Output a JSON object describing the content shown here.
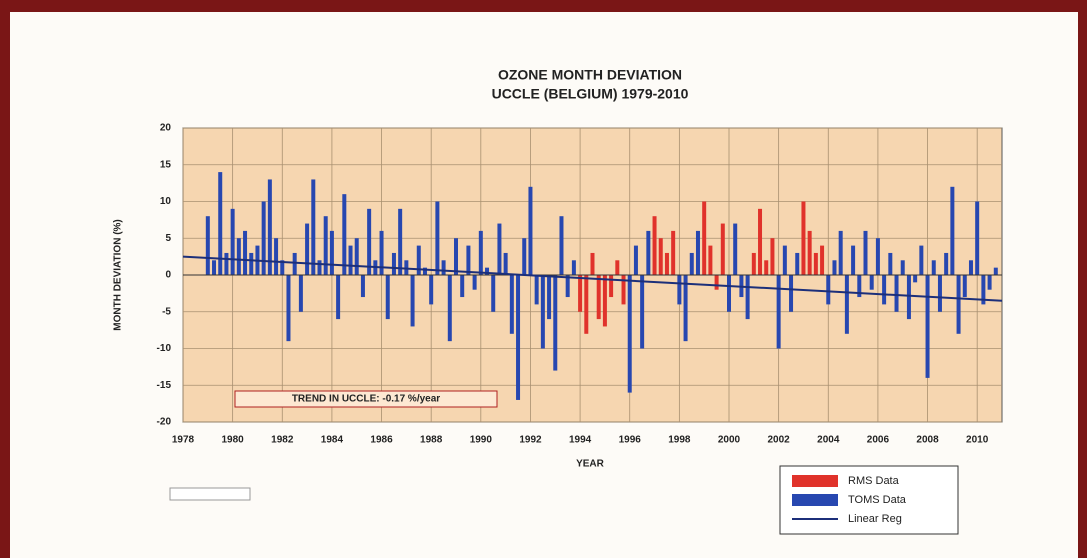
{
  "chart_data": {
    "type": "bar",
    "title": "OZONE MONTH DEVIATION",
    "subtitle": "UCCLE (BELGIUM) 1979-2010",
    "x_label": "YEAR",
    "y_label": "MONTH DEVIATION (%)",
    "annotation": "TREND IN UCCLE: -0.17 %/year",
    "xlim": [
      1978,
      2011
    ],
    "ylim": [
      -20,
      20
    ],
    "xticks": [
      1978,
      1980,
      1982,
      1984,
      1986,
      1988,
      1990,
      1992,
      1994,
      1996,
      1998,
      2000,
      2002,
      2004,
      2006,
      2008,
      2010
    ],
    "yticks": [
      20,
      15,
      10,
      5,
      0,
      -5,
      -10,
      -15,
      -20
    ],
    "grid": true,
    "series": [
      {
        "name": "RMS Data",
        "color": "#e0322b",
        "x": [
          1994,
          1994.25,
          1994.5,
          1994.75,
          1995,
          1995.25,
          1995.5,
          1995.75,
          1997,
          1997.25,
          1997.5,
          1997.75,
          1999,
          1999.25,
          1999.5,
          1999.75,
          2001,
          2001.25,
          2001.5,
          2001.75,
          2003,
          2003.25,
          2003.5,
          2003.75
        ],
        "values": [
          -5,
          -8,
          3,
          -6,
          -7,
          -3,
          2,
          -4,
          8,
          5,
          3,
          6,
          10,
          4,
          -2,
          7,
          3,
          9,
          2,
          5,
          10,
          6,
          3,
          4
        ]
      },
      {
        "name": "TOMS Data",
        "color": "#2747b0",
        "x": [
          1979,
          1979.25,
          1979.5,
          1979.75,
          1980,
          1980.25,
          1980.5,
          1980.75,
          1981,
          1981.25,
          1981.5,
          1981.75,
          1982,
          1982.25,
          1982.5,
          1982.75,
          1983,
          1983.25,
          1983.5,
          1983.75,
          1984,
          1984.25,
          1984.5,
          1984.75,
          1985,
          1985.25,
          1985.5,
          1985.75,
          1986,
          1986.25,
          1986.5,
          1986.75,
          1987,
          1987.25,
          1987.5,
          1987.75,
          1988,
          1988.25,
          1988.5,
          1988.75,
          1989,
          1989.25,
          1989.5,
          1989.75,
          1990,
          1990.25,
          1990.5,
          1990.75,
          1991,
          1991.25,
          1991.5,
          1991.75,
          1992,
          1992.25,
          1992.5,
          1992.75,
          1993,
          1993.25,
          1993.5,
          1993.75,
          1996,
          1996.25,
          1996.5,
          1996.75,
          1998,
          1998.25,
          1998.5,
          1998.75,
          2000,
          2000.25,
          2000.5,
          2000.75,
          2002,
          2002.25,
          2002.5,
          2002.75,
          2004,
          2004.25,
          2004.5,
          2004.75,
          2005,
          2005.25,
          2005.5,
          2005.75,
          2006,
          2006.25,
          2006.5,
          2006.75,
          2007,
          2007.25,
          2007.5,
          2007.75,
          2008,
          2008.25,
          2008.5,
          2008.75,
          2009,
          2009.25,
          2009.5,
          2009.75,
          2010,
          2010.25,
          2010.5,
          2010.75
        ],
        "values": [
          8,
          2,
          14,
          3,
          9,
          5,
          6,
          3,
          4,
          10,
          13,
          5,
          2,
          -9,
          3,
          -5,
          7,
          13,
          2,
          8,
          6,
          -6,
          11,
          4,
          5,
          -3,
          9,
          2,
          6,
          -6,
          3,
          9,
          2,
          -7,
          4,
          1,
          -4,
          10,
          2,
          -9,
          5,
          -3,
          4,
          -2,
          6,
          1,
          -5,
          7,
          3,
          -8,
          -17,
          5,
          12,
          -4,
          -10,
          -6,
          -13,
          8,
          -3,
          2,
          -16,
          4,
          -10,
          6,
          -4,
          -9,
          3,
          6,
          -5,
          7,
          -3,
          -6,
          -10,
          4,
          -5,
          3,
          -4,
          2,
          6,
          -8,
          4,
          -3,
          6,
          -2,
          5,
          -4,
          3,
          -5,
          2,
          -6,
          -1,
          4,
          -14,
          2,
          -5,
          3,
          12,
          -8,
          -3,
          2,
          10,
          -4,
          -2,
          1
        ]
      },
      {
        "name": "Linear Reg",
        "color": "#1c2f7a",
        "line": true,
        "x": [
          1978,
          2011
        ],
        "values": [
          2.5,
          -3.5
        ]
      }
    ]
  }
}
